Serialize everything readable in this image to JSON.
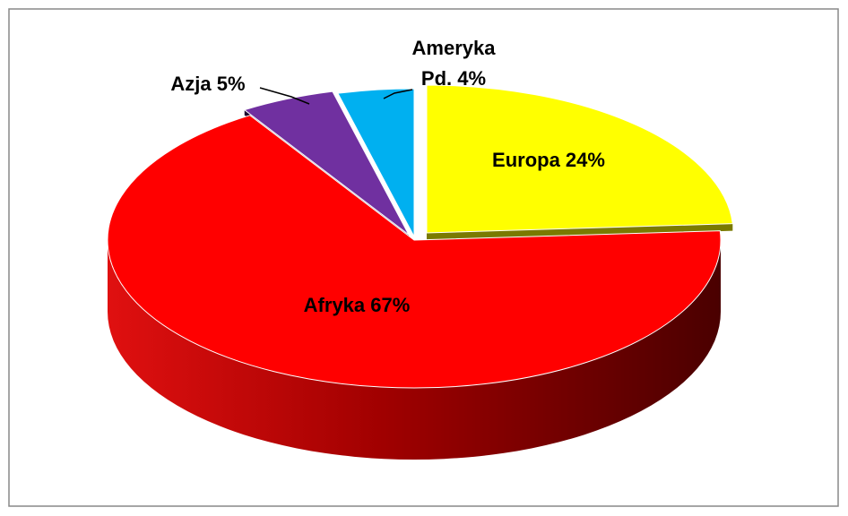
{
  "chart_data": {
    "type": "pie",
    "categories": [
      "Europa",
      "Afryka",
      "Azja",
      "Ameryka Pd."
    ],
    "values": [
      24,
      67,
      5,
      4
    ],
    "value_labels": [
      [
        "Europa 24%"
      ],
      [
        "Afryka 67%"
      ],
      [
        "Azja 5%"
      ],
      [
        "Ameryka",
        "Pd. 4%"
      ]
    ],
    "colors": [
      "#ffff00",
      "#ff0000",
      "#7030a0",
      "#00b0f0"
    ]
  }
}
